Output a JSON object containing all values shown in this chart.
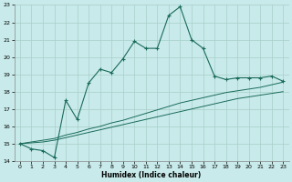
{
  "xlabel": "Humidex (Indice chaleur)",
  "bg_color": "#c8eaea",
  "grid_color": "#a8d0c8",
  "line_color": "#1a6b5a",
  "xlim": [
    -0.5,
    23.5
  ],
  "ylim": [
    14,
    23
  ],
  "x_main": [
    0,
    1,
    2,
    3,
    4,
    5,
    6,
    7,
    8,
    9,
    10,
    11,
    12,
    13,
    14,
    15,
    16,
    17,
    18,
    19,
    20,
    21,
    22,
    23
  ],
  "y_main": [
    15.0,
    14.7,
    14.6,
    14.2,
    17.5,
    16.4,
    18.5,
    19.3,
    19.1,
    19.9,
    20.9,
    20.5,
    20.5,
    22.4,
    22.9,
    21.0,
    20.5,
    18.9,
    18.7,
    18.8,
    18.8,
    18.8,
    18.9,
    18.6
  ],
  "y_line2": [
    15.0,
    15.05,
    15.1,
    15.2,
    15.35,
    15.5,
    15.65,
    15.8,
    15.95,
    16.1,
    16.25,
    16.4,
    16.55,
    16.7,
    16.85,
    17.0,
    17.15,
    17.3,
    17.45,
    17.6,
    17.7,
    17.8,
    17.9,
    18.0
  ],
  "y_line3": [
    15.0,
    15.1,
    15.2,
    15.3,
    15.5,
    15.65,
    15.85,
    16.0,
    16.2,
    16.35,
    16.55,
    16.75,
    16.95,
    17.15,
    17.35,
    17.5,
    17.65,
    17.8,
    17.95,
    18.05,
    18.15,
    18.25,
    18.4,
    18.55
  ]
}
